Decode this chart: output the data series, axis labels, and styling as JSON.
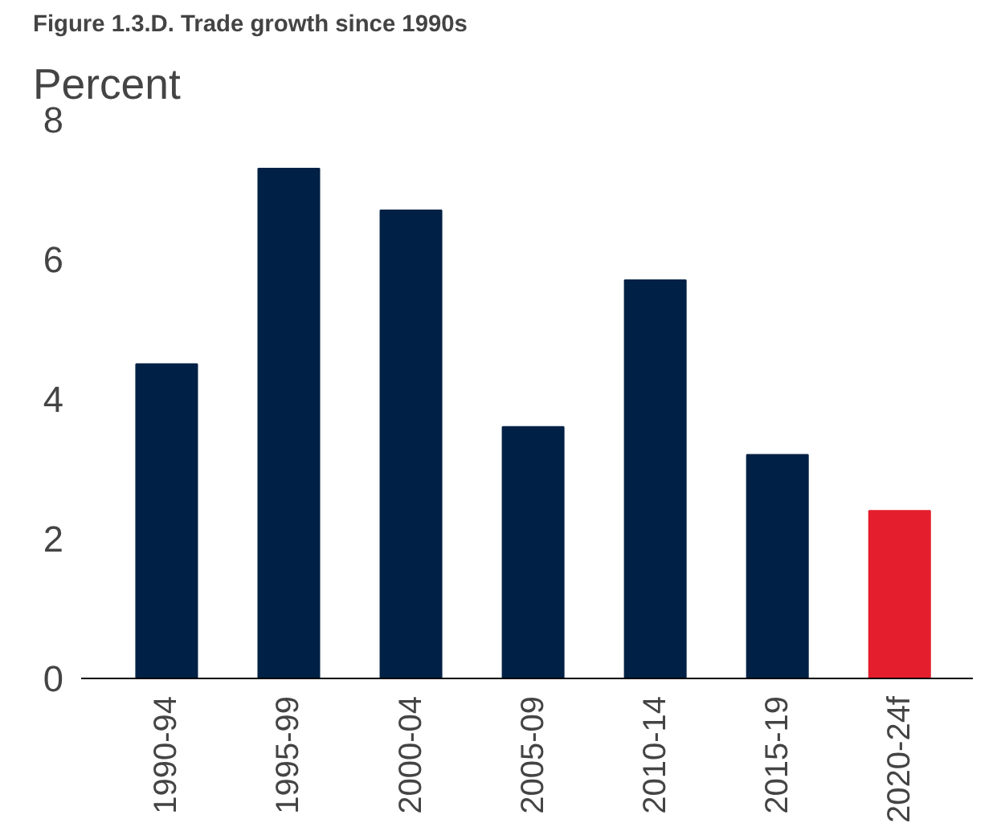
{
  "chart_data": {
    "type": "bar",
    "title": "Figure 1.3.D. Trade growth since 1990s",
    "ylabel": "Percent",
    "categories": [
      "1990-94",
      "1995-99",
      "2000-04",
      "2005-09",
      "2010-14",
      "2015-19",
      "2020-24f"
    ],
    "values": [
      4.5,
      7.3,
      6.7,
      3.6,
      5.7,
      3.2,
      2.4
    ],
    "colors": [
      "#002145",
      "#002145",
      "#002145",
      "#002145",
      "#002145",
      "#002145",
      "#e41e2c"
    ],
    "ylim": [
      0,
      8
    ],
    "yticks": [
      0,
      2,
      4,
      6,
      8
    ]
  }
}
